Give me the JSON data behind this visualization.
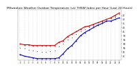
{
  "title": "Milwaukee Weather Outdoor Temperature (vs) THSW Index per Hour (Last 24 Hours)",
  "title_fontsize": 3.2,
  "background_color": "#ffffff",
  "plot_bg_color": "#ffffff",
  "grid_color": "#aaaaaa",
  "xlim": [
    -0.5,
    23.5
  ],
  "ylim": [
    20,
    82
  ],
  "ytick_positions": [
    25,
    30,
    35,
    40,
    45,
    50,
    55,
    60,
    65,
    70,
    75
  ],
  "ytick_labels": [
    "75",
    "70",
    "65",
    "60",
    "55",
    "50",
    "45",
    "40",
    "35",
    "30",
    "25"
  ],
  "xtick_labels": [
    "0",
    "1",
    "2",
    "3",
    "4",
    "5",
    "6",
    "7",
    "8",
    "9",
    "10",
    "11",
    "12",
    "13",
    "14",
    "15",
    "16",
    "17",
    "18",
    "19",
    "20",
    "21",
    "22",
    "23"
  ],
  "hours": [
    0,
    1,
    2,
    3,
    4,
    5,
    6,
    7,
    8,
    9,
    10,
    11,
    12,
    13,
    14,
    15,
    16,
    17,
    18,
    19,
    20,
    21,
    22,
    23
  ],
  "temp": [
    40,
    39,
    39,
    38,
    38,
    38,
    38,
    38,
    38,
    42,
    44,
    49,
    52,
    55,
    58,
    61,
    62,
    64,
    66,
    68,
    70,
    72,
    75,
    78
  ],
  "thsw": [
    27,
    25,
    24,
    23,
    22,
    22,
    22,
    22,
    22,
    23,
    28,
    34,
    38,
    44,
    50,
    54,
    57,
    60,
    63,
    65,
    68,
    68,
    70,
    72
  ],
  "black_dotted": [
    35,
    34,
    33,
    32,
    31,
    30,
    30,
    31,
    32,
    37,
    40,
    45,
    48,
    52,
    55,
    58,
    60,
    62,
    64,
    67,
    69,
    71,
    73,
    76
  ],
  "temp_color": "#cc0000",
  "thsw_color": "#0000bb",
  "black_color": "#222222",
  "markersize_solid": 1.2,
  "markersize_dot": 1.0,
  "linewidth": 0.0
}
